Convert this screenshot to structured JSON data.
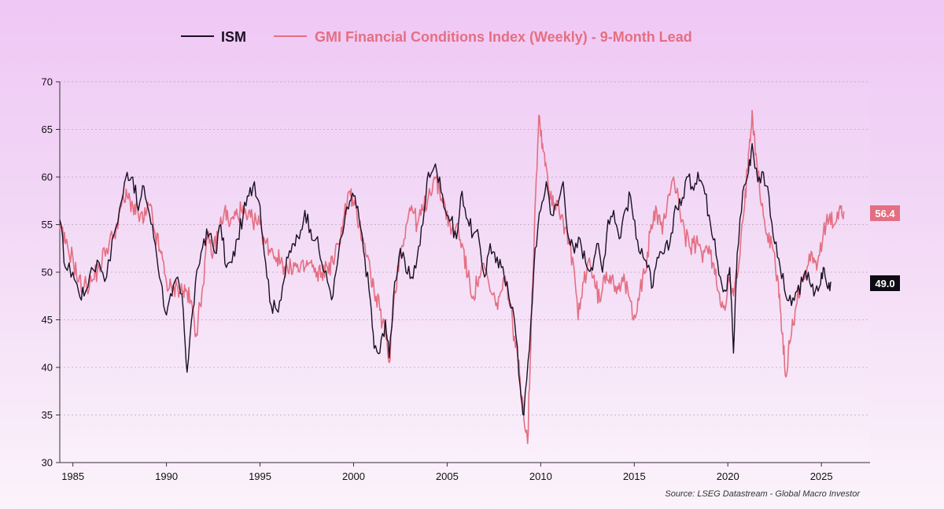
{
  "chart_data": {
    "type": "line",
    "title": "",
    "xlabel": "",
    "ylabel": "",
    "xlim": [
      1984.3,
      2027.6
    ],
    "ylim": [
      30,
      70
    ],
    "yticks": [
      30,
      35,
      40,
      45,
      50,
      55,
      60,
      65,
      70
    ],
    "xticks": [
      1985,
      1990,
      1995,
      2000,
      2005,
      2010,
      2015,
      2020,
      2025
    ],
    "grid": "horizontal dotted",
    "legend_position": "top",
    "source": "Source: LSEG Datastream - Global Macro Investor",
    "series": [
      {
        "name": "ISM",
        "color": "#1a1024",
        "last_value_label": "49.0",
        "points": [
          [
            1984.3,
            55.5
          ],
          [
            1984.6,
            50.5
          ],
          [
            1985.0,
            50.0
          ],
          [
            1985.3,
            48.0
          ],
          [
            1985.6,
            47.5
          ],
          [
            1986.0,
            50.5
          ],
          [
            1986.4,
            51.0
          ],
          [
            1986.8,
            49.5
          ],
          [
            1987.2,
            54.0
          ],
          [
            1987.6,
            57.5
          ],
          [
            1987.9,
            60.5
          ],
          [
            1988.2,
            60.0
          ],
          [
            1988.5,
            56.5
          ],
          [
            1988.8,
            59.0
          ],
          [
            1989.1,
            56.0
          ],
          [
            1989.4,
            53.0
          ],
          [
            1989.7,
            49.0
          ],
          [
            1990.0,
            45.5
          ],
          [
            1990.3,
            47.5
          ],
          [
            1990.6,
            49.5
          ],
          [
            1990.9,
            46.0
          ],
          [
            1991.1,
            39.5
          ],
          [
            1991.4,
            46.0
          ],
          [
            1991.7,
            50.5
          ],
          [
            1992.0,
            53.5
          ],
          [
            1992.3,
            54.0
          ],
          [
            1992.6,
            52.0
          ],
          [
            1992.9,
            55.0
          ],
          [
            1993.2,
            50.5
          ],
          [
            1993.5,
            51.0
          ],
          [
            1993.8,
            53.5
          ],
          [
            1994.1,
            56.0
          ],
          [
            1994.4,
            58.0
          ],
          [
            1994.7,
            59.5
          ],
          [
            1995.0,
            57.0
          ],
          [
            1995.3,
            51.0
          ],
          [
            1995.6,
            46.5
          ],
          [
            1995.9,
            46.0
          ],
          [
            1996.2,
            48.5
          ],
          [
            1996.5,
            51.5
          ],
          [
            1996.8,
            53.0
          ],
          [
            1997.1,
            53.5
          ],
          [
            1997.4,
            56.5
          ],
          [
            1997.7,
            54.5
          ],
          [
            1998.0,
            53.5
          ],
          [
            1998.3,
            51.0
          ],
          [
            1998.6,
            49.0
          ],
          [
            1998.9,
            47.5
          ],
          [
            1999.2,
            52.0
          ],
          [
            1999.5,
            55.0
          ],
          [
            1999.8,
            57.5
          ],
          [
            2000.0,
            58.0
          ],
          [
            2000.3,
            55.5
          ],
          [
            2000.6,
            51.5
          ],
          [
            2000.9,
            47.0
          ],
          [
            2001.1,
            42.0
          ],
          [
            2001.4,
            41.5
          ],
          [
            2001.7,
            45.0
          ],
          [
            2001.9,
            41.0
          ],
          [
            2002.2,
            49.0
          ],
          [
            2002.5,
            52.5
          ],
          [
            2002.8,
            50.0
          ],
          [
            2003.1,
            49.5
          ],
          [
            2003.4,
            51.5
          ],
          [
            2003.7,
            55.0
          ],
          [
            2004.0,
            60.5
          ],
          [
            2004.3,
            61.0
          ],
          [
            2004.6,
            60.0
          ],
          [
            2004.9,
            56.5
          ],
          [
            2005.2,
            55.5
          ],
          [
            2005.5,
            53.5
          ],
          [
            2005.8,
            58.5
          ],
          [
            2006.1,
            55.5
          ],
          [
            2006.4,
            54.0
          ],
          [
            2006.7,
            53.5
          ],
          [
            2007.0,
            49.5
          ],
          [
            2007.3,
            53.0
          ],
          [
            2007.6,
            51.0
          ],
          [
            2007.9,
            50.5
          ],
          [
            2008.2,
            49.0
          ],
          [
            2008.6,
            45.0
          ],
          [
            2008.9,
            38.0
          ],
          [
            2009.1,
            35.0
          ],
          [
            2009.4,
            42.0
          ],
          [
            2009.7,
            52.5
          ],
          [
            2010.0,
            56.5
          ],
          [
            2010.3,
            59.5
          ],
          [
            2010.6,
            56.0
          ],
          [
            2010.9,
            57.0
          ],
          [
            2011.2,
            59.5
          ],
          [
            2011.5,
            53.5
          ],
          [
            2011.8,
            52.0
          ],
          [
            2012.1,
            53.5
          ],
          [
            2012.4,
            51.0
          ],
          [
            2012.7,
            50.5
          ],
          [
            2013.0,
            53.0
          ],
          [
            2013.3,
            50.0
          ],
          [
            2013.6,
            55.5
          ],
          [
            2013.9,
            56.5
          ],
          [
            2014.2,
            53.5
          ],
          [
            2014.5,
            56.5
          ],
          [
            2014.8,
            58.0
          ],
          [
            2015.1,
            53.5
          ],
          [
            2015.4,
            52.5
          ],
          [
            2015.7,
            50.5
          ],
          [
            2016.0,
            48.5
          ],
          [
            2016.3,
            51.5
          ],
          [
            2016.6,
            52.0
          ],
          [
            2016.9,
            53.0
          ],
          [
            2017.2,
            57.0
          ],
          [
            2017.5,
            57.0
          ],
          [
            2017.8,
            60.0
          ],
          [
            2018.1,
            59.0
          ],
          [
            2018.4,
            60.5
          ],
          [
            2018.7,
            59.0
          ],
          [
            2019.0,
            56.0
          ],
          [
            2019.3,
            53.5
          ],
          [
            2019.6,
            49.5
          ],
          [
            2019.9,
            48.0
          ],
          [
            2020.1,
            50.5
          ],
          [
            2020.3,
            41.5
          ],
          [
            2020.5,
            52.0
          ],
          [
            2020.8,
            58.5
          ],
          [
            2021.1,
            60.5
          ],
          [
            2021.3,
            63.5
          ],
          [
            2021.6,
            59.5
          ],
          [
            2021.9,
            60.5
          ],
          [
            2022.2,
            58.0
          ],
          [
            2022.5,
            53.0
          ],
          [
            2022.8,
            50.5
          ],
          [
            2023.1,
            47.5
          ],
          [
            2023.4,
            46.5
          ],
          [
            2023.7,
            48.0
          ],
          [
            2024.0,
            49.0
          ],
          [
            2024.3,
            50.0
          ],
          [
            2024.6,
            47.5
          ],
          [
            2024.9,
            48.5
          ],
          [
            2025.1,
            50.5
          ],
          [
            2025.3,
            48.5
          ],
          [
            2025.5,
            49.0
          ]
        ]
      },
      {
        "name": "GMI Financial Conditions Index (Weekly) - 9-Month Lead",
        "color": "#e46f82",
        "last_value_label": "56.4",
        "points": [
          [
            1984.3,
            54.5
          ],
          [
            1984.6,
            53.0
          ],
          [
            1985.0,
            51.5
          ],
          [
            1985.3,
            49.0
          ],
          [
            1985.6,
            48.5
          ],
          [
            1986.0,
            49.0
          ],
          [
            1986.4,
            50.5
          ],
          [
            1986.8,
            52.5
          ],
          [
            1987.2,
            54.0
          ],
          [
            1987.6,
            57.0
          ],
          [
            1987.9,
            58.0
          ],
          [
            1988.2,
            57.0
          ],
          [
            1988.5,
            56.0
          ],
          [
            1988.8,
            55.5
          ],
          [
            1989.1,
            57.0
          ],
          [
            1989.4,
            54.0
          ],
          [
            1989.7,
            52.0
          ],
          [
            1990.0,
            49.0
          ],
          [
            1990.3,
            48.0
          ],
          [
            1990.6,
            48.5
          ],
          [
            1990.9,
            48.0
          ],
          [
            1991.1,
            48.0
          ],
          [
            1991.4,
            46.0
          ],
          [
            1991.6,
            43.5
          ],
          [
            1991.9,
            48.0
          ],
          [
            1992.2,
            53.5
          ],
          [
            1992.5,
            52.0
          ],
          [
            1992.8,
            54.5
          ],
          [
            1993.1,
            56.5
          ],
          [
            1993.4,
            55.0
          ],
          [
            1993.7,
            56.0
          ],
          [
            1994.0,
            56.5
          ],
          [
            1994.3,
            55.5
          ],
          [
            1994.6,
            55.5
          ],
          [
            1995.0,
            55.0
          ],
          [
            1995.3,
            53.0
          ],
          [
            1995.6,
            52.5
          ],
          [
            1995.9,
            51.5
          ],
          [
            1996.2,
            51.0
          ],
          [
            1996.5,
            50.0
          ],
          [
            1996.8,
            51.0
          ],
          [
            1997.1,
            50.0
          ],
          [
            1997.4,
            50.5
          ],
          [
            1997.7,
            51.0
          ],
          [
            1998.0,
            49.5
          ],
          [
            1998.3,
            50.0
          ],
          [
            1998.6,
            50.5
          ],
          [
            1998.9,
            51.0
          ],
          [
            1999.2,
            53.0
          ],
          [
            1999.5,
            56.0
          ],
          [
            1999.8,
            58.5
          ],
          [
            2000.0,
            57.0
          ],
          [
            2000.3,
            55.0
          ],
          [
            2000.6,
            53.0
          ],
          [
            2000.9,
            50.0
          ],
          [
            2001.1,
            48.0
          ],
          [
            2001.4,
            46.0
          ],
          [
            2001.7,
            43.5
          ],
          [
            2001.9,
            40.5
          ],
          [
            2002.2,
            48.0
          ],
          [
            2002.5,
            52.0
          ],
          [
            2002.8,
            55.0
          ],
          [
            2003.1,
            57.0
          ],
          [
            2003.4,
            55.0
          ],
          [
            2003.7,
            56.5
          ],
          [
            2004.0,
            58.0
          ],
          [
            2004.3,
            60.0
          ],
          [
            2004.6,
            58.5
          ],
          [
            2004.9,
            57.0
          ],
          [
            2005.2,
            54.0
          ],
          [
            2005.5,
            55.0
          ],
          [
            2005.8,
            53.0
          ],
          [
            2006.1,
            49.5
          ],
          [
            2006.4,
            47.5
          ],
          [
            2006.7,
            49.5
          ],
          [
            2007.0,
            50.5
          ],
          [
            2007.3,
            48.0
          ],
          [
            2007.6,
            46.5
          ],
          [
            2007.9,
            48.0
          ],
          [
            2008.2,
            49.0
          ],
          [
            2008.5,
            44.5
          ],
          [
            2008.8,
            40.5
          ],
          [
            2009.0,
            37.0
          ],
          [
            2009.3,
            32.0
          ],
          [
            2009.5,
            45.0
          ],
          [
            2009.7,
            57.0
          ],
          [
            2009.9,
            66.5
          ],
          [
            2010.1,
            63.5
          ],
          [
            2010.3,
            61.0
          ],
          [
            2010.6,
            57.0
          ],
          [
            2010.9,
            57.5
          ],
          [
            2011.2,
            55.5
          ],
          [
            2011.5,
            53.0
          ],
          [
            2011.8,
            50.0
          ],
          [
            2012.0,
            45.0
          ],
          [
            2012.3,
            49.0
          ],
          [
            2012.6,
            51.5
          ],
          [
            2012.9,
            48.5
          ],
          [
            2013.2,
            47.0
          ],
          [
            2013.5,
            50.0
          ],
          [
            2013.8,
            49.5
          ],
          [
            2014.1,
            48.5
          ],
          [
            2014.4,
            49.0
          ],
          [
            2014.7,
            47.5
          ],
          [
            2015.0,
            45.5
          ],
          [
            2015.3,
            48.0
          ],
          [
            2015.6,
            50.0
          ],
          [
            2015.9,
            55.0
          ],
          [
            2016.2,
            56.5
          ],
          [
            2016.5,
            54.0
          ],
          [
            2016.8,
            58.0
          ],
          [
            2017.1,
            60.0
          ],
          [
            2017.4,
            57.0
          ],
          [
            2017.7,
            54.0
          ],
          [
            2018.0,
            52.5
          ],
          [
            2018.3,
            53.0
          ],
          [
            2018.6,
            52.0
          ],
          [
            2018.9,
            52.5
          ],
          [
            2019.2,
            51.0
          ],
          [
            2019.5,
            48.0
          ],
          [
            2019.8,
            46.5
          ],
          [
            2020.1,
            49.0
          ],
          [
            2020.3,
            47.5
          ],
          [
            2020.6,
            51.0
          ],
          [
            2020.9,
            57.0
          ],
          [
            2021.1,
            62.5
          ],
          [
            2021.3,
            67.0
          ],
          [
            2021.5,
            62.5
          ],
          [
            2021.8,
            57.0
          ],
          [
            2022.1,
            54.0
          ],
          [
            2022.4,
            52.5
          ],
          [
            2022.7,
            49.0
          ],
          [
            2022.9,
            43.5
          ],
          [
            2023.1,
            39.0
          ],
          [
            2023.3,
            42.5
          ],
          [
            2023.6,
            46.0
          ],
          [
            2023.9,
            49.0
          ],
          [
            2024.2,
            50.0
          ],
          [
            2024.5,
            52.0
          ],
          [
            2024.8,
            51.0
          ],
          [
            2025.1,
            54.0
          ],
          [
            2025.4,
            55.5
          ],
          [
            2025.7,
            55.0
          ],
          [
            2026.0,
            57.0
          ],
          [
            2026.2,
            56.4
          ]
        ]
      }
    ]
  }
}
